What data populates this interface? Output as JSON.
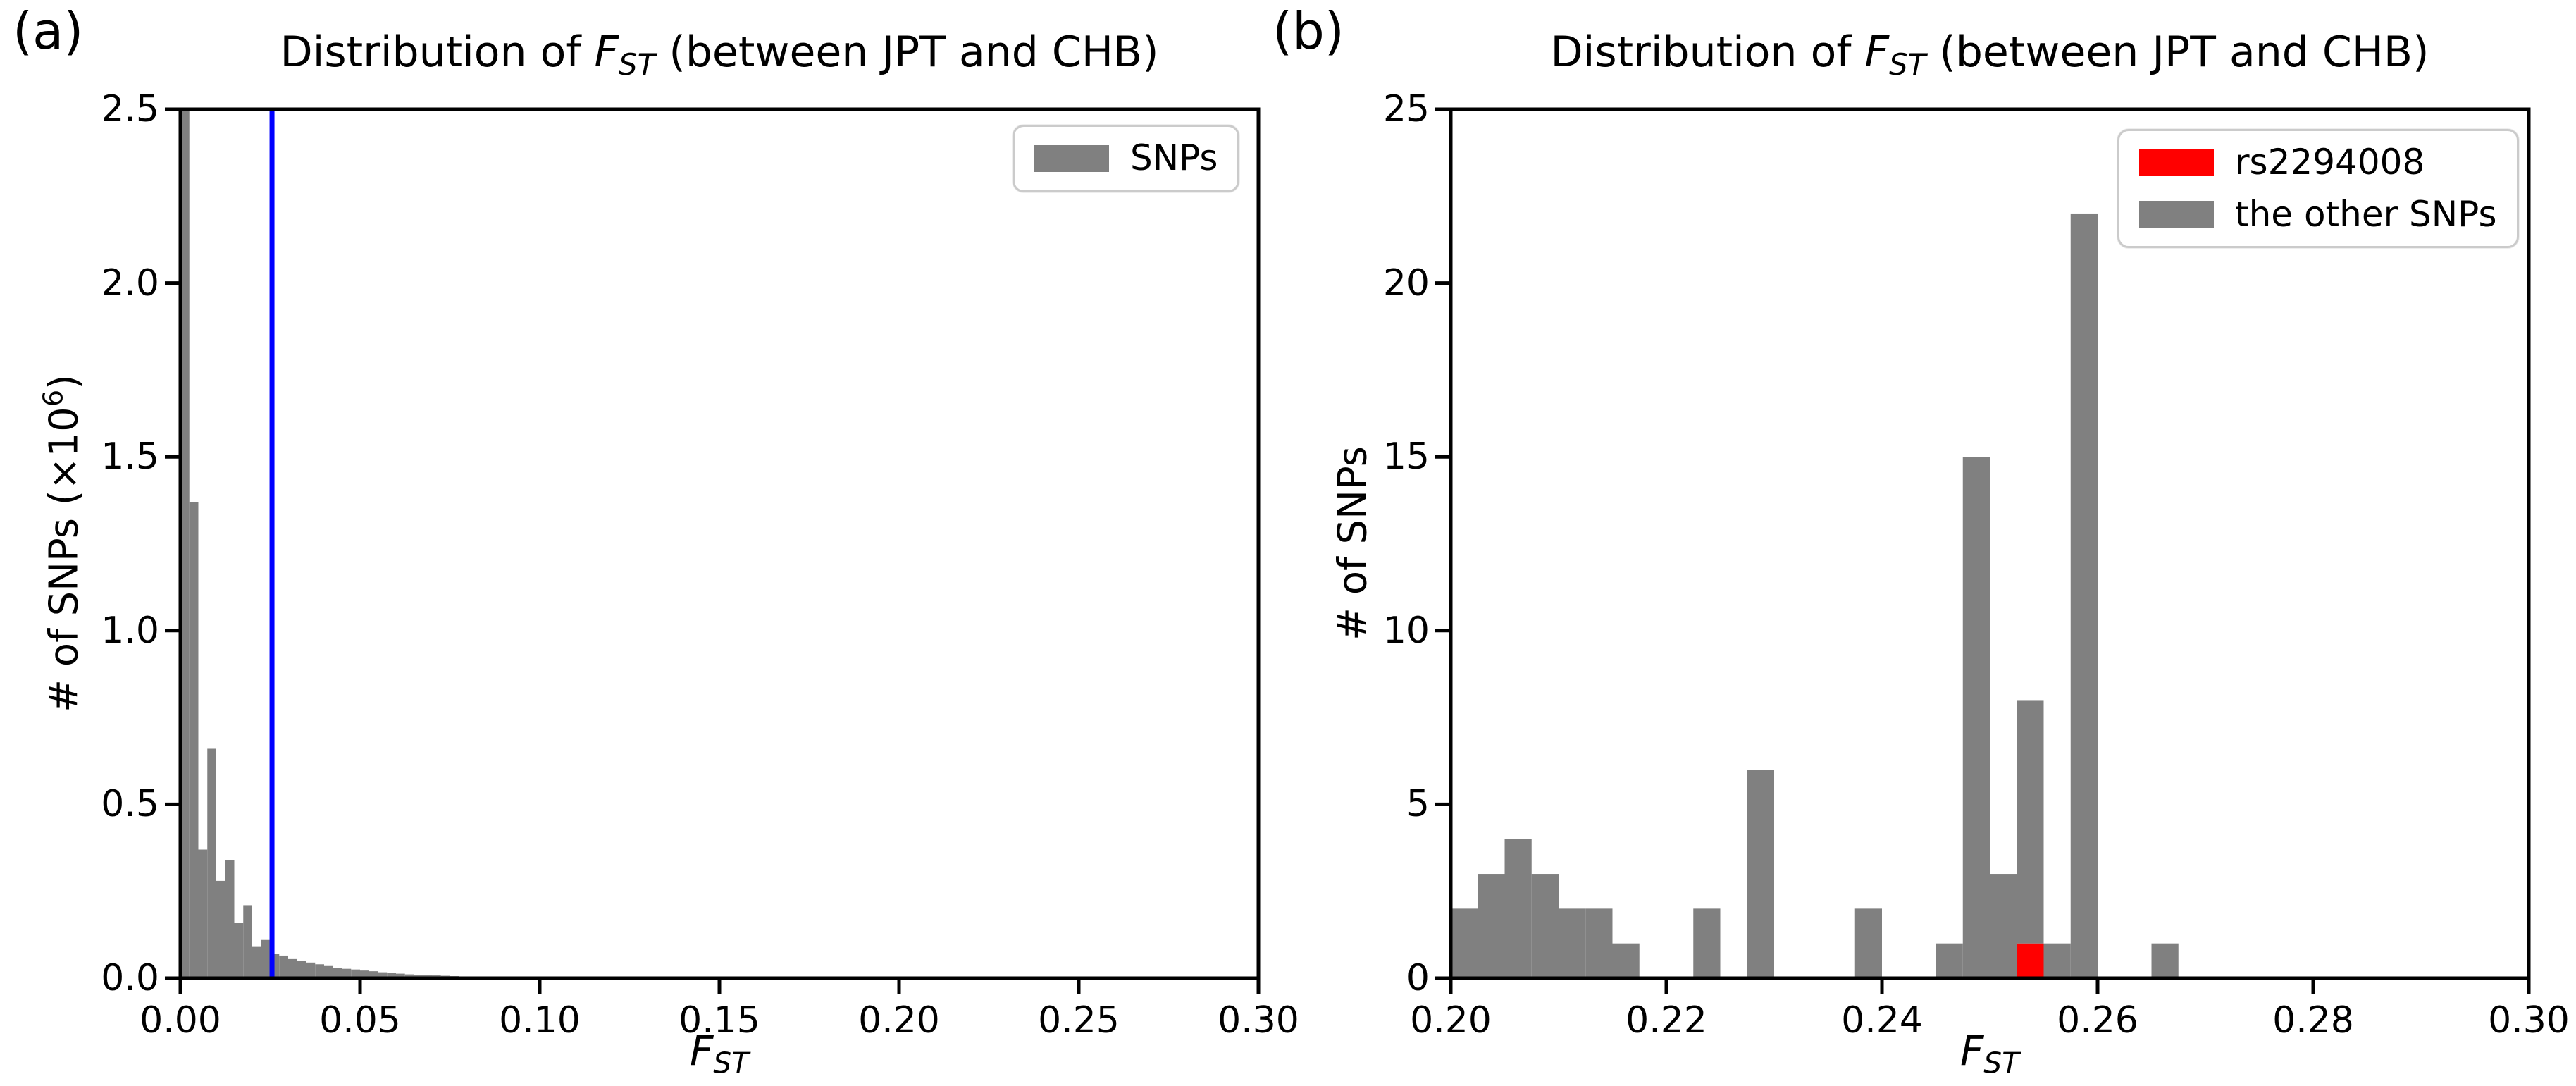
{
  "colors": {
    "bar_gray": "#808080",
    "highlight_red": "#ff0000",
    "vline_blue": "#0000ff",
    "axis_black": "#000000",
    "legend_border": "#cbcbcb",
    "background": "#ffffff"
  },
  "chart_data": [
    {
      "id": "a",
      "panel_label": "(a)",
      "type": "bar",
      "title": {
        "prefix": "Distribution of ",
        "math": "F",
        "sub": "ST",
        "suffix": " (between JPT and CHB)"
      },
      "xlabel": {
        "math": "F",
        "sub": "ST"
      },
      "ylabel": {
        "pre": "# of SNPs (×10",
        "sup": "6",
        "post": ")"
      },
      "xlim": [
        0.0,
        0.3
      ],
      "ylim": [
        0.0,
        2.5
      ],
      "x_ticks": {
        "labels": [
          "0.00",
          "0.05",
          "0.10",
          "0.15",
          "0.20",
          "0.25",
          "0.30"
        ],
        "values": [
          0.0,
          0.05,
          0.1,
          0.15,
          0.2,
          0.25,
          0.3
        ]
      },
      "y_ticks": {
        "labels": [
          "0.0",
          "0.5",
          "1.0",
          "1.5",
          "2.0",
          "2.5"
        ],
        "values": [
          0.0,
          0.5,
          1.0,
          1.5,
          2.0,
          2.5
        ]
      },
      "grid": false,
      "bin_start": 0.0,
      "bin_width": 0.0025,
      "values": [
        2.6,
        1.37,
        0.37,
        0.66,
        0.28,
        0.34,
        0.16,
        0.21,
        0.09,
        0.11,
        0.07,
        0.065,
        0.055,
        0.05,
        0.045,
        0.04,
        0.035,
        0.03,
        0.027,
        0.025,
        0.022,
        0.02,
        0.017,
        0.015,
        0.013,
        0.011,
        0.01,
        0.009,
        0.008,
        0.007,
        0.006,
        0.005,
        0.004,
        0.003,
        0.003,
        0.002,
        0.002,
        0.001,
        0.001,
        0.001
      ],
      "note": "first bin exceeds the y-axis and is clipped at 2.5 (×10⁶)",
      "vline": {
        "x": 0.0255,
        "color": "#0000ff"
      },
      "legend": [
        {
          "label": "SNPs",
          "color": "#808080"
        }
      ],
      "legend_position": "upper right"
    },
    {
      "id": "b",
      "panel_label": "(b)",
      "type": "bar",
      "title": {
        "prefix": "Distribution of ",
        "math": "F",
        "sub": "ST",
        "suffix": " (between JPT and CHB)"
      },
      "xlabel": {
        "math": "F",
        "sub": "ST"
      },
      "ylabel": {
        "pre": "# of SNPs",
        "sup": "",
        "post": ""
      },
      "xlim": [
        0.2,
        0.3
      ],
      "ylim": [
        0,
        25
      ],
      "x_ticks": {
        "labels": [
          "0.20",
          "0.22",
          "0.24",
          "0.26",
          "0.28",
          "0.30"
        ],
        "values": [
          0.2,
          0.22,
          0.24,
          0.26,
          0.28,
          0.3
        ]
      },
      "y_ticks": {
        "labels": [
          "0",
          "5",
          "10",
          "15",
          "20",
          "25"
        ],
        "values": [
          0,
          5,
          10,
          15,
          20,
          25
        ]
      },
      "grid": false,
      "bin_start": 0.2,
      "bin_width": 0.0025,
      "stacked": true,
      "series": [
        {
          "name": "rs2294008",
          "color": "#ff0000",
          "values": [
            0,
            0,
            0,
            0,
            0,
            0,
            0,
            0,
            0,
            0,
            0,
            0,
            0,
            0,
            0,
            0,
            0,
            0,
            0,
            0,
            0,
            1,
            0,
            0,
            0,
            0,
            0
          ]
        },
        {
          "name": "the other SNPs",
          "color": "#808080",
          "values": [
            2,
            3,
            4,
            3,
            2,
            2,
            1,
            0,
            0,
            2,
            0,
            6,
            0,
            0,
            0,
            2,
            0,
            0,
            1,
            15,
            3,
            7,
            1,
            22,
            0,
            0,
            1
          ]
        }
      ],
      "legend": [
        {
          "label": "rs2294008",
          "color": "#ff0000"
        },
        {
          "label": "the other SNPs",
          "color": "#808080"
        }
      ],
      "legend_position": "upper right"
    }
  ]
}
